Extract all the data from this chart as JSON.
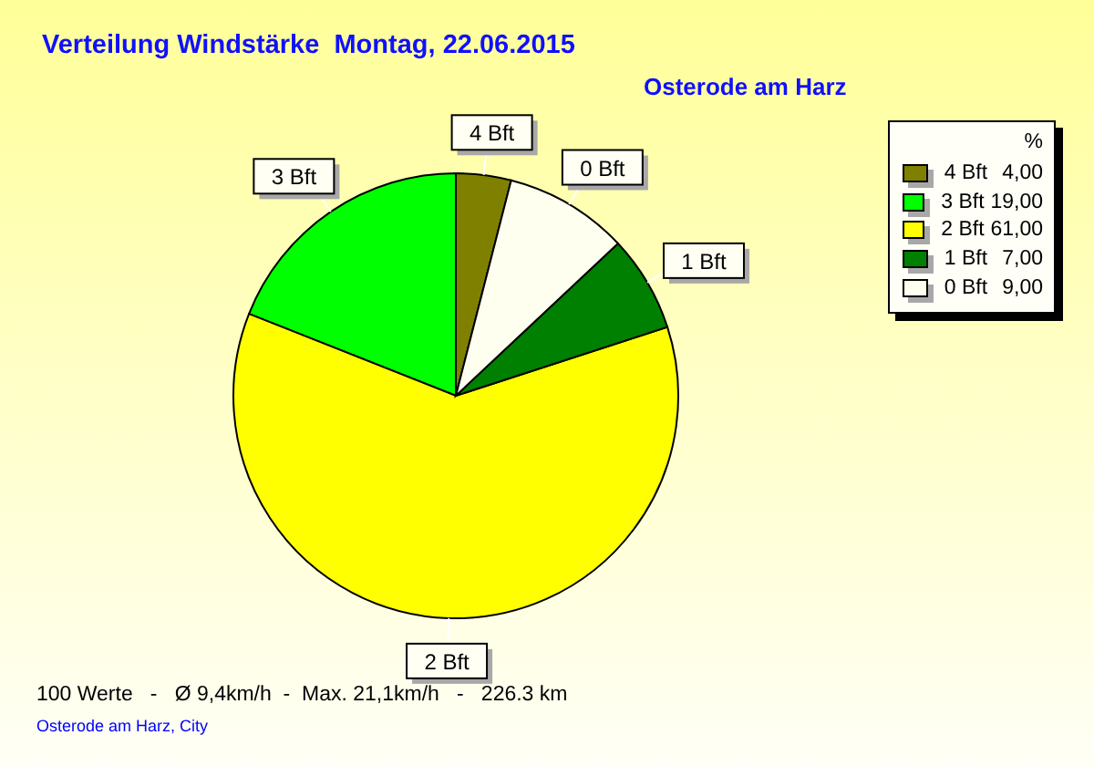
{
  "chart_data": {
    "type": "pie",
    "title": "Verteilung Windstärke  Montag, 22.06.2015",
    "subtitle": "Osterode am Harz",
    "categories": [
      "4 Bft",
      "3 Bft",
      "2 Bft",
      "1 Bft",
      "0 Bft"
    ],
    "values": [
      4,
      19,
      61,
      7,
      9
    ],
    "value_labels": [
      "4,00",
      "19,00",
      "61,00",
      "7,00",
      "9,00"
    ],
    "colors": [
      "#808000",
      "#00ff00",
      "#ffff00",
      "#008000",
      "#fffff0"
    ],
    "legend": "top right",
    "legend_title": "%",
    "annotations": [
      "100 Werte   -   Ø 9,4km/h  -  Max. 21,1km/h   -   226.3 km",
      "Osterode am Harz, City"
    ]
  }
}
